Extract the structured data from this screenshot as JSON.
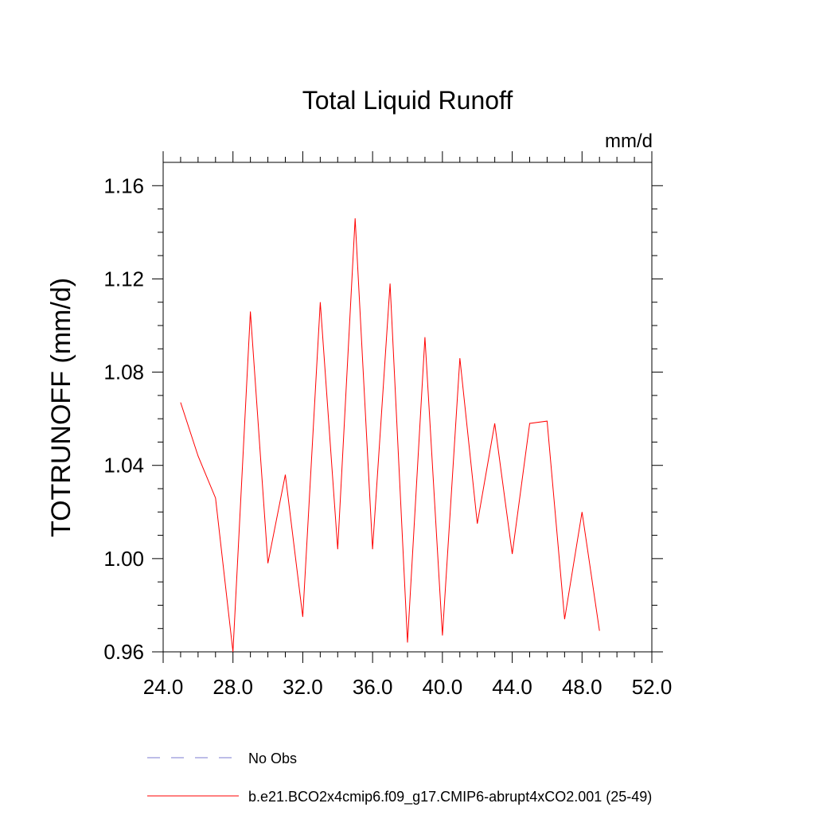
{
  "chart_data": {
    "type": "line",
    "title": "Total Liquid Runoff",
    "units": "mm/d",
    "ylabel": "TOTRUNOFF  (mm/d)",
    "xlabel": "",
    "xlim": [
      24.0,
      52.0
    ],
    "ylim": [
      0.96,
      1.17
    ],
    "xticks": [
      24,
      28,
      32,
      36,
      40,
      44,
      48,
      52
    ],
    "xtick_labels": [
      "24.0",
      "28.0",
      "32.0",
      "36.0",
      "40.0",
      "44.0",
      "48.0",
      "52.0"
    ],
    "yticks": [
      0.96,
      1.0,
      1.04,
      1.08,
      1.12,
      1.16
    ],
    "ytick_labels": [
      "0.96",
      "1.00",
      "1.04",
      "1.08",
      "1.12",
      "1.16"
    ],
    "grid": false,
    "legend_position": "bottom",
    "series": [
      {
        "name": "b.e21.BCO2x4cmip6.f09_g17.CMIP6-abrupt4xCO2.001 (25-49)",
        "color": "#ff0000",
        "style": "solid",
        "x": [
          25,
          26,
          27,
          28,
          29,
          30,
          31,
          32,
          33,
          34,
          35,
          36,
          37,
          38,
          39,
          40,
          41,
          42,
          43,
          44,
          45,
          46,
          47,
          48,
          49
        ],
        "y": [
          1.067,
          1.044,
          1.026,
          0.96,
          1.106,
          0.998,
          1.036,
          0.975,
          1.11,
          1.004,
          1.146,
          1.004,
          1.118,
          0.964,
          1.095,
          0.967,
          1.086,
          1.015,
          1.058,
          1.002,
          1.058,
          1.059,
          0.974,
          1.02,
          0.969
        ]
      }
    ],
    "legend": [
      {
        "label": "No Obs",
        "color": "#7b7bd1",
        "style": "dashed"
      },
      {
        "label": "b.e21.BCO2x4cmip6.f09_g17.CMIP6-abrupt4xCO2.001 (25-49)",
        "color": "#ff0000",
        "style": "solid"
      }
    ]
  }
}
